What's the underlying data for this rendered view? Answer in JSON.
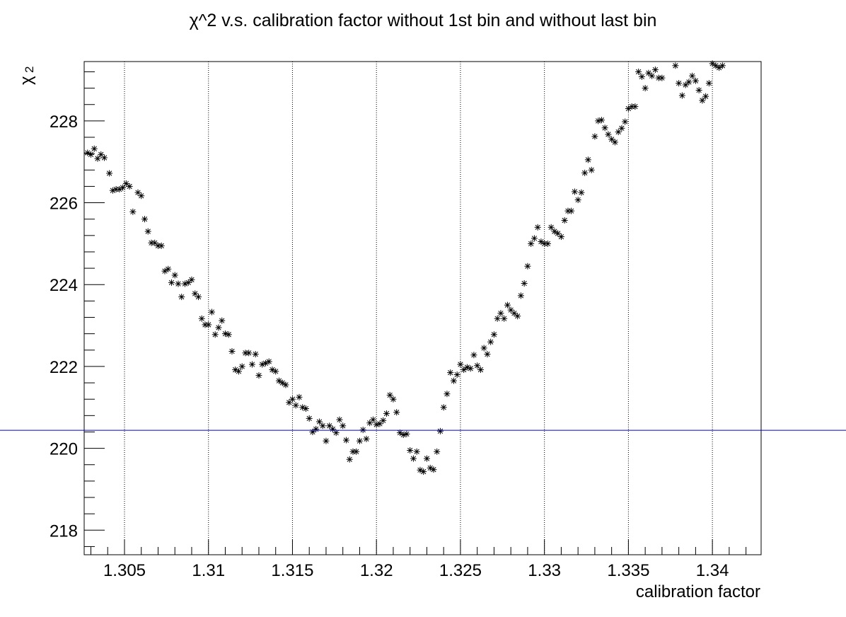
{
  "chart_data": {
    "type": "scatter",
    "title": "χ^2 v.s. calibration factor without 1st bin and without last bin",
    "xlabel": "calibration factor",
    "ylabel": "χ",
    "ylabel_superscript": "2",
    "xlim": [
      1.3026,
      1.3429
    ],
    "ylim": [
      217.4,
      229.45
    ],
    "xticks": [
      1.305,
      1.31,
      1.315,
      1.32,
      1.325,
      1.33,
      1.335,
      1.34
    ],
    "xtick_labels": [
      "1.305",
      "1.31",
      "1.315",
      "1.32",
      "1.325",
      "1.33",
      "1.335",
      "1.34"
    ],
    "yticks": [
      218,
      220,
      222,
      224,
      226,
      228
    ],
    "ytick_labels": [
      "218",
      "220",
      "222",
      "224",
      "226",
      "228"
    ],
    "grid": "vertical dotted lines at major x ticks",
    "marker": "asterisk",
    "reference_line": {
      "y": 220.44,
      "color": "#0000cc"
    },
    "colors": {
      "points": "#000000",
      "reference_line": "#0000cc",
      "grid": "#000000"
    },
    "points": [
      [
        1.3028,
        227.22
      ],
      [
        1.303,
        227.18
      ],
      [
        1.3032,
        227.32
      ],
      [
        1.3034,
        227.08
      ],
      [
        1.3036,
        227.18
      ],
      [
        1.3038,
        227.1
      ],
      [
        1.3041,
        226.72
      ],
      [
        1.3043,
        226.3
      ],
      [
        1.3045,
        226.33
      ],
      [
        1.3047,
        226.33
      ],
      [
        1.3049,
        226.37
      ],
      [
        1.3051,
        226.47
      ],
      [
        1.3053,
        226.4
      ],
      [
        1.3055,
        225.78
      ],
      [
        1.3058,
        226.25
      ],
      [
        1.306,
        226.17
      ],
      [
        1.3062,
        225.6
      ],
      [
        1.3064,
        225.3
      ],
      [
        1.3066,
        225.02
      ],
      [
        1.3068,
        225.02
      ],
      [
        1.307,
        224.95
      ],
      [
        1.3072,
        224.95
      ],
      [
        1.3074,
        224.33
      ],
      [
        1.3076,
        224.38
      ],
      [
        1.3078,
        224.05
      ],
      [
        1.308,
        224.23
      ],
      [
        1.3082,
        224.02
      ],
      [
        1.3084,
        223.7
      ],
      [
        1.3086,
        224.02
      ],
      [
        1.3088,
        224.05
      ],
      [
        1.309,
        224.12
      ],
      [
        1.3092,
        223.78
      ],
      [
        1.3094,
        223.7
      ],
      [
        1.3096,
        223.17
      ],
      [
        1.3098,
        223.02
      ],
      [
        1.31,
        223.02
      ],
      [
        1.3102,
        223.33
      ],
      [
        1.3104,
        222.78
      ],
      [
        1.3106,
        222.95
      ],
      [
        1.3108,
        223.12
      ],
      [
        1.311,
        222.8
      ],
      [
        1.3112,
        222.78
      ],
      [
        1.3114,
        222.37
      ],
      [
        1.3116,
        221.92
      ],
      [
        1.3118,
        221.88
      ],
      [
        1.312,
        222.0
      ],
      [
        1.3122,
        222.33
      ],
      [
        1.3124,
        222.33
      ],
      [
        1.3126,
        222.05
      ],
      [
        1.3128,
        222.3
      ],
      [
        1.313,
        221.78
      ],
      [
        1.3132,
        222.05
      ],
      [
        1.3134,
        222.08
      ],
      [
        1.3136,
        222.12
      ],
      [
        1.3138,
        221.92
      ],
      [
        1.314,
        221.88
      ],
      [
        1.3142,
        221.65
      ],
      [
        1.3144,
        221.6
      ],
      [
        1.3146,
        221.55
      ],
      [
        1.3148,
        221.12
      ],
      [
        1.315,
        221.2
      ],
      [
        1.3152,
        221.05
      ],
      [
        1.3154,
        221.25
      ],
      [
        1.3156,
        221.0
      ],
      [
        1.3158,
        220.97
      ],
      [
        1.316,
        220.73
      ],
      [
        1.3162,
        220.4
      ],
      [
        1.3164,
        220.47
      ],
      [
        1.3166,
        220.65
      ],
      [
        1.3168,
        220.55
      ],
      [
        1.317,
        220.18
      ],
      [
        1.3172,
        220.55
      ],
      [
        1.3174,
        220.47
      ],
      [
        1.3176,
        220.38
      ],
      [
        1.3178,
        220.7
      ],
      [
        1.318,
        220.55
      ],
      [
        1.3182,
        220.2
      ],
      [
        1.3184,
        219.73
      ],
      [
        1.3186,
        219.92
      ],
      [
        1.3188,
        219.92
      ],
      [
        1.319,
        220.18
      ],
      [
        1.3192,
        220.45
      ],
      [
        1.3194,
        220.23
      ],
      [
        1.3196,
        220.62
      ],
      [
        1.3198,
        220.7
      ],
      [
        1.32,
        220.58
      ],
      [
        1.3202,
        220.6
      ],
      [
        1.3204,
        220.68
      ],
      [
        1.3206,
        220.85
      ],
      [
        1.3208,
        221.3
      ],
      [
        1.321,
        221.2
      ],
      [
        1.3212,
        220.88
      ],
      [
        1.3214,
        220.38
      ],
      [
        1.3216,
        220.33
      ],
      [
        1.3218,
        220.35
      ],
      [
        1.322,
        219.95
      ],
      [
        1.3222,
        219.75
      ],
      [
        1.3224,
        219.92
      ],
      [
        1.3226,
        219.47
      ],
      [
        1.3228,
        219.43
      ],
      [
        1.323,
        219.75
      ],
      [
        1.3232,
        219.52
      ],
      [
        1.3234,
        219.48
      ],
      [
        1.3236,
        219.92
      ],
      [
        1.3238,
        220.42
      ],
      [
        1.324,
        221.0
      ],
      [
        1.3242,
        221.33
      ],
      [
        1.3244,
        221.85
      ],
      [
        1.3246,
        221.65
      ],
      [
        1.3248,
        221.8
      ],
      [
        1.325,
        222.05
      ],
      [
        1.3252,
        221.92
      ],
      [
        1.3254,
        221.98
      ],
      [
        1.3256,
        221.95
      ],
      [
        1.3258,
        222.28
      ],
      [
        1.326,
        222.02
      ],
      [
        1.3262,
        221.92
      ],
      [
        1.3264,
        222.45
      ],
      [
        1.3266,
        222.3
      ],
      [
        1.3268,
        222.6
      ],
      [
        1.327,
        222.78
      ],
      [
        1.3272,
        223.17
      ],
      [
        1.3274,
        223.3
      ],
      [
        1.3276,
        223.17
      ],
      [
        1.3278,
        223.5
      ],
      [
        1.328,
        223.38
      ],
      [
        1.3282,
        223.3
      ],
      [
        1.3284,
        223.23
      ],
      [
        1.3286,
        223.73
      ],
      [
        1.3288,
        224.03
      ],
      [
        1.329,
        224.45
      ],
      [
        1.3292,
        225.0
      ],
      [
        1.3294,
        225.13
      ],
      [
        1.3296,
        225.4
      ],
      [
        1.3298,
        225.05
      ],
      [
        1.33,
        225.0
      ],
      [
        1.3302,
        225.0
      ],
      [
        1.3304,
        225.4
      ],
      [
        1.3306,
        225.3
      ],
      [
        1.3308,
        225.25
      ],
      [
        1.331,
        225.17
      ],
      [
        1.3312,
        225.57
      ],
      [
        1.3314,
        225.8
      ],
      [
        1.3316,
        225.8
      ],
      [
        1.3318,
        226.27
      ],
      [
        1.332,
        226.07
      ],
      [
        1.3322,
        226.25
      ],
      [
        1.3324,
        226.73
      ],
      [
        1.3326,
        227.05
      ],
      [
        1.3328,
        226.8
      ],
      [
        1.333,
        227.62
      ],
      [
        1.3332,
        228.0
      ],
      [
        1.3334,
        228.02
      ],
      [
        1.3336,
        227.83
      ],
      [
        1.3338,
        227.67
      ],
      [
        1.334,
        227.55
      ],
      [
        1.3342,
        227.48
      ],
      [
        1.3344,
        227.73
      ],
      [
        1.3346,
        227.82
      ],
      [
        1.3348,
        227.98
      ],
      [
        1.335,
        228.3
      ],
      [
        1.3352,
        228.35
      ],
      [
        1.3354,
        228.35
      ],
      [
        1.3356,
        229.2
      ],
      [
        1.3358,
        229.08
      ],
      [
        1.336,
        228.8
      ],
      [
        1.3362,
        229.17
      ],
      [
        1.3364,
        229.1
      ],
      [
        1.3366,
        229.25
      ],
      [
        1.3368,
        229.05
      ],
      [
        1.337,
        229.05
      ],
      [
        1.3378,
        229.35
      ],
      [
        1.338,
        228.92
      ],
      [
        1.3382,
        228.62
      ],
      [
        1.3384,
        228.88
      ],
      [
        1.3386,
        228.95
      ],
      [
        1.3388,
        229.1
      ],
      [
        1.339,
        228.98
      ],
      [
        1.3392,
        228.75
      ],
      [
        1.3394,
        228.5
      ],
      [
        1.3396,
        228.6
      ],
      [
        1.3398,
        228.92
      ],
      [
        1.34,
        229.4
      ],
      [
        1.3402,
        229.35
      ],
      [
        1.3404,
        229.3
      ],
      [
        1.3406,
        229.35
      ]
    ]
  }
}
